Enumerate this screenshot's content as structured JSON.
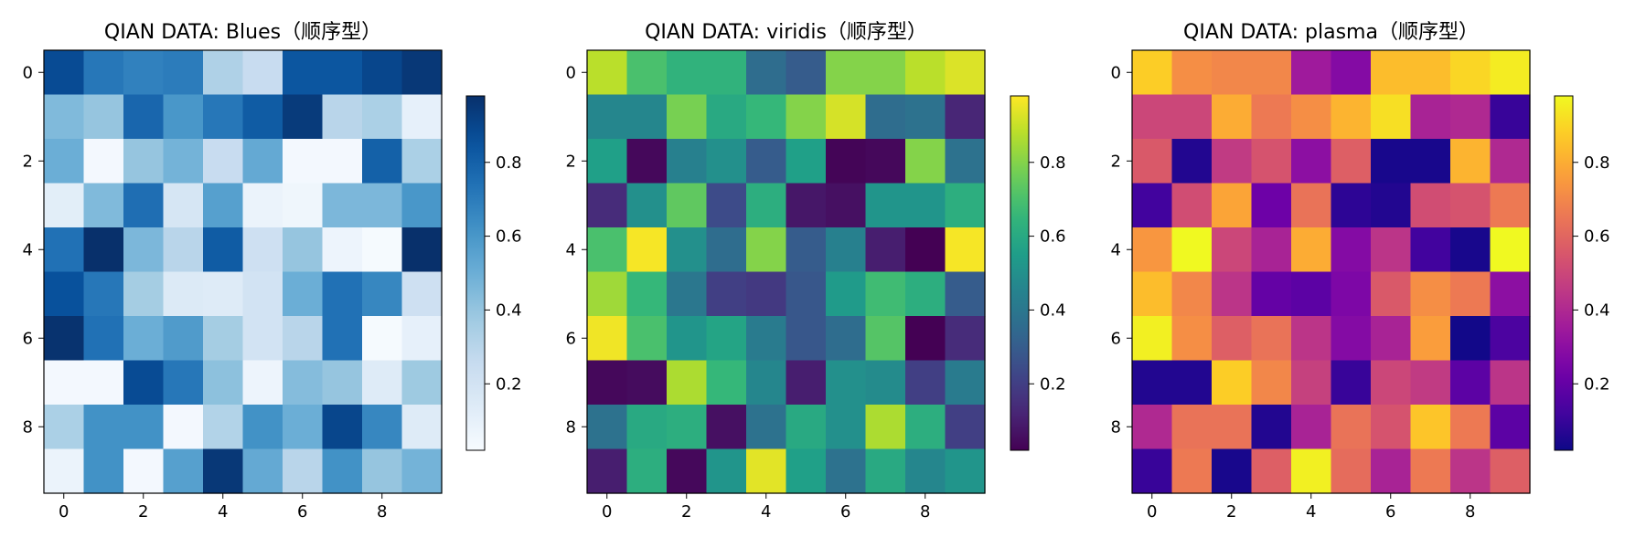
{
  "chart_data": [
    {
      "type": "heatmap",
      "title": "QIAN DATA: Blues（顺序型）",
      "colormap": "Blues",
      "x_ticks": [
        "0",
        "2",
        "4",
        "6",
        "8"
      ],
      "y_ticks": [
        "0",
        "2",
        "4",
        "6",
        "8"
      ],
      "colorbar_ticks": [
        "0.2",
        "0.4",
        "0.6",
        "0.8"
      ],
      "colorbar_range": [
        0.02,
        0.98
      ],
      "values": [
        [
          0.88,
          0.72,
          0.68,
          0.7,
          0.33,
          0.25,
          0.84,
          0.84,
          0.9,
          0.95
        ],
        [
          0.45,
          0.4,
          0.78,
          0.6,
          0.72,
          0.82,
          0.94,
          0.3,
          0.34,
          0.1
        ],
        [
          0.5,
          0.04,
          0.4,
          0.48,
          0.25,
          0.52,
          0.04,
          0.04,
          0.8,
          0.34
        ],
        [
          0.12,
          0.45,
          0.75,
          0.18,
          0.56,
          0.08,
          0.06,
          0.46,
          0.46,
          0.6
        ],
        [
          0.74,
          0.98,
          0.46,
          0.3,
          0.82,
          0.22,
          0.4,
          0.07,
          0.03,
          0.98
        ],
        [
          0.86,
          0.72,
          0.36,
          0.15,
          0.14,
          0.2,
          0.5,
          0.74,
          0.66,
          0.22
        ],
        [
          0.97,
          0.74,
          0.5,
          0.58,
          0.36,
          0.2,
          0.3,
          0.74,
          0.03,
          0.1
        ],
        [
          0.04,
          0.04,
          0.88,
          0.72,
          0.42,
          0.07,
          0.44,
          0.4,
          0.14,
          0.38
        ],
        [
          0.34,
          0.62,
          0.62,
          0.04,
          0.32,
          0.62,
          0.5,
          0.9,
          0.66,
          0.14
        ],
        [
          0.08,
          0.62,
          0.04,
          0.56,
          0.95,
          0.52,
          0.3,
          0.62,
          0.4,
          0.48
        ]
      ]
    },
    {
      "type": "heatmap",
      "title": "QIAN DATA: viridis（顺序型）",
      "colormap": "viridis",
      "x_ticks": [
        "0",
        "2",
        "4",
        "6",
        "8"
      ],
      "y_ticks": [
        "0",
        "2",
        "4",
        "6",
        "8"
      ],
      "colorbar_ticks": [
        "0.2",
        "0.4",
        "0.6",
        "0.8"
      ],
      "colorbar_range": [
        0.02,
        0.98
      ],
      "values": [
        [
          0.88,
          0.7,
          0.64,
          0.64,
          0.36,
          0.3,
          0.8,
          0.8,
          0.88,
          0.93
        ],
        [
          0.46,
          0.46,
          0.78,
          0.6,
          0.66,
          0.8,
          0.92,
          0.36,
          0.38,
          0.12
        ],
        [
          0.56,
          0.04,
          0.44,
          0.5,
          0.3,
          0.56,
          0.03,
          0.04,
          0.8,
          0.38
        ],
        [
          0.14,
          0.5,
          0.74,
          0.24,
          0.62,
          0.08,
          0.06,
          0.52,
          0.52,
          0.62
        ],
        [
          0.7,
          0.97,
          0.5,
          0.36,
          0.8,
          0.3,
          0.44,
          0.1,
          0.02,
          0.97
        ],
        [
          0.84,
          0.66,
          0.4,
          0.2,
          0.18,
          0.28,
          0.54,
          0.68,
          0.62,
          0.3
        ],
        [
          0.96,
          0.7,
          0.52,
          0.58,
          0.42,
          0.28,
          0.36,
          0.72,
          0.02,
          0.14
        ],
        [
          0.04,
          0.05,
          0.86,
          0.66,
          0.46,
          0.1,
          0.5,
          0.48,
          0.2,
          0.42
        ],
        [
          0.38,
          0.6,
          0.62,
          0.06,
          0.38,
          0.6,
          0.5,
          0.86,
          0.62,
          0.2
        ],
        [
          0.1,
          0.62,
          0.04,
          0.52,
          0.94,
          0.56,
          0.38,
          0.6,
          0.46,
          0.52
        ]
      ]
    },
    {
      "type": "heatmap",
      "title": "QIAN DATA: plasma（顺序型）",
      "colormap": "plasma",
      "x_ticks": [
        "0",
        "2",
        "4",
        "6",
        "8"
      ],
      "y_ticks": [
        "0",
        "2",
        "4",
        "6",
        "8"
      ],
      "colorbar_ticks": [
        "0.2",
        "0.4",
        "0.6",
        "0.8"
      ],
      "colorbar_range": [
        0.02,
        0.98
      ],
      "values": [
        [
          0.88,
          0.72,
          0.7,
          0.7,
          0.35,
          0.28,
          0.84,
          0.84,
          0.9,
          0.95
        ],
        [
          0.5,
          0.5,
          0.8,
          0.66,
          0.72,
          0.82,
          0.92,
          0.38,
          0.4,
          0.1
        ],
        [
          0.56,
          0.06,
          0.46,
          0.54,
          0.3,
          0.58,
          0.04,
          0.04,
          0.82,
          0.4
        ],
        [
          0.12,
          0.52,
          0.78,
          0.22,
          0.64,
          0.08,
          0.06,
          0.52,
          0.54,
          0.66
        ],
        [
          0.74,
          0.98,
          0.5,
          0.38,
          0.8,
          0.28,
          0.44,
          0.12,
          0.04,
          0.98
        ],
        [
          0.84,
          0.7,
          0.44,
          0.2,
          0.18,
          0.26,
          0.56,
          0.72,
          0.66,
          0.3
        ],
        [
          0.96,
          0.72,
          0.58,
          0.64,
          0.44,
          0.28,
          0.38,
          0.76,
          0.03,
          0.14
        ],
        [
          0.06,
          0.06,
          0.88,
          0.7,
          0.48,
          0.1,
          0.5,
          0.46,
          0.18,
          0.44
        ],
        [
          0.4,
          0.64,
          0.64,
          0.06,
          0.38,
          0.64,
          0.54,
          0.86,
          0.66,
          0.18
        ],
        [
          0.1,
          0.66,
          0.04,
          0.58,
          0.96,
          0.62,
          0.38,
          0.66,
          0.44,
          0.58
        ]
      ]
    }
  ]
}
